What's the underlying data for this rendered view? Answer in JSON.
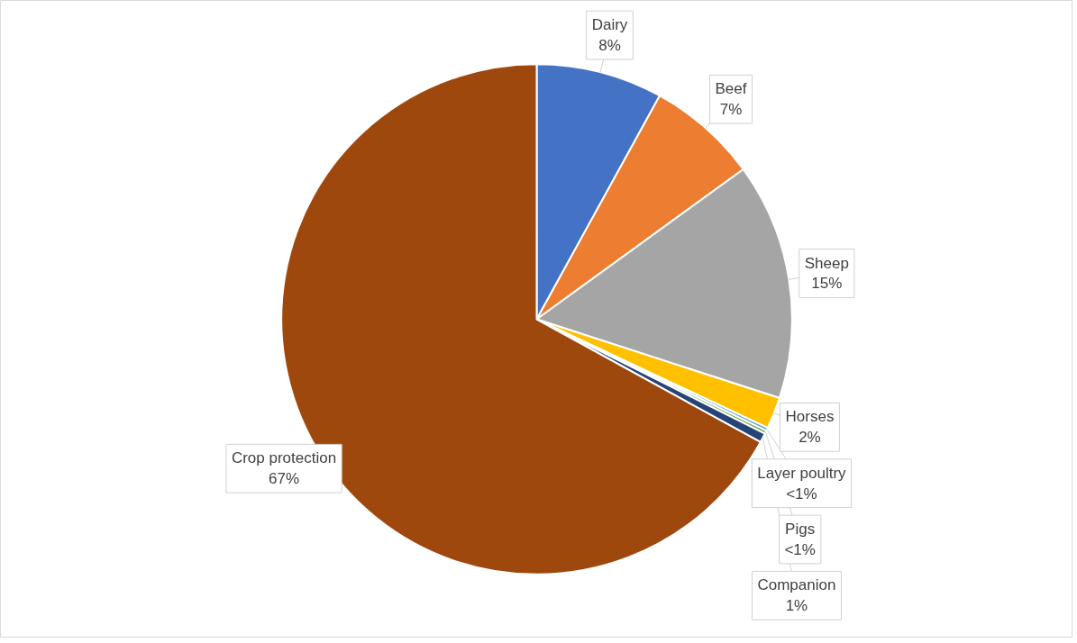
{
  "chart_data": {
    "type": "pie",
    "categories": [
      "Dairy",
      "Beef",
      "Sheep",
      "Horses",
      "Layer poultry",
      "Pigs",
      "Companion",
      "Crop protection"
    ],
    "values": [
      8,
      7,
      15,
      2,
      0.2,
      0.2,
      0.6,
      67
    ],
    "colors": [
      "#4472c4",
      "#ed7d31",
      "#a5a5a5",
      "#ffc000",
      "#5b9bd5",
      "#70ad47",
      "#264478",
      "#9e480e"
    ],
    "value_labels": [
      "8%",
      "7%",
      "15%",
      "2%",
      "<1%",
      "<1%",
      "1%",
      "67%"
    ]
  }
}
